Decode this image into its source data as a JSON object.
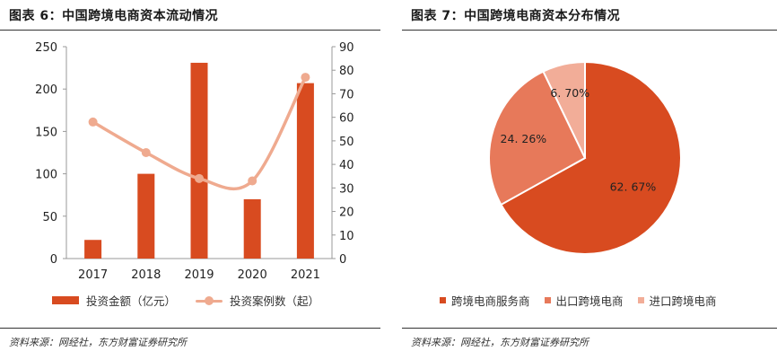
{
  "left": {
    "title": "图表 6：中国跨境电商资本流动情况",
    "source": "资料来源：网经社，东方财富证券研究所"
  },
  "right": {
    "title": "图表 7：中国跨境电商资本分布情况",
    "source": "资料来源：网经社，东方财富证券研究所"
  },
  "colors": {
    "bar": "#d84b20",
    "line": "#efaa8f",
    "pie": [
      "#d84b20",
      "#e7795a",
      "#f2ad98"
    ]
  },
  "chart_data": [
    {
      "type": "bar",
      "categories": [
        "2017",
        "2018",
        "2019",
        "2020",
        "2021"
      ],
      "series": [
        {
          "name": "投资金额（亿元）",
          "type": "bar",
          "axis": "left",
          "values": [
            22,
            100,
            231,
            70,
            207
          ]
        },
        {
          "name": "投资案例数（起）",
          "type": "line",
          "axis": "right",
          "values": [
            58,
            45,
            34,
            33,
            77
          ]
        }
      ],
      "ylim": [
        0,
        250
      ],
      "yticks": [
        0,
        50,
        100,
        150,
        200,
        250
      ],
      "y2lim": [
        0,
        90
      ],
      "y2ticks": [
        0,
        10,
        20,
        30,
        40,
        50,
        60,
        70,
        80,
        90
      ],
      "legend": "bottom"
    },
    {
      "type": "pie",
      "slices": [
        {
          "name": "跨境电商服务商",
          "value": 62.67,
          "label": "62. 67%"
        },
        {
          "name": "出口跨境电商",
          "value": 24.26,
          "label": "24. 26%"
        },
        {
          "name": "进口跨境电商",
          "value": 6.7,
          "label": "6. 70%"
        }
      ],
      "legend": "bottom"
    }
  ]
}
